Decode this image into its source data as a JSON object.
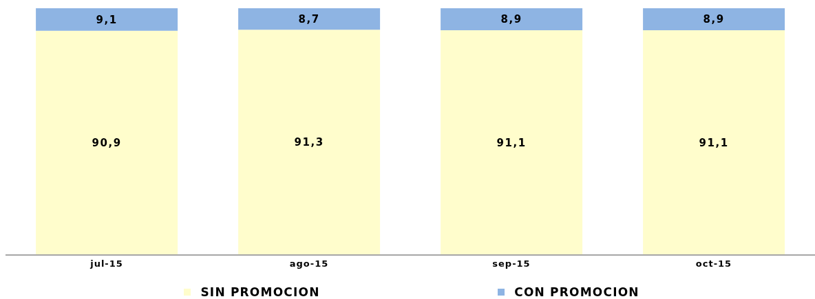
{
  "chart_data": {
    "type": "bar",
    "stacked": true,
    "categories": [
      "jul-15",
      "ago-15",
      "sep-15",
      "oct-15"
    ],
    "series": [
      {
        "name": "SIN PROMOCION",
        "color": "#fffdcc",
        "values": [
          90.9,
          91.3,
          91.1,
          91.1
        ],
        "value_labels": [
          "90,9",
          "91,3",
          "91,1",
          "91,1"
        ]
      },
      {
        "name": "CON PROMOCION",
        "color": "#8eb4e3",
        "values": [
          9.1,
          8.7,
          8.9,
          8.9
        ],
        "value_labels": [
          "9,1",
          "8,7",
          "8,9",
          "8,9"
        ]
      }
    ],
    "legend": "bottom"
  }
}
